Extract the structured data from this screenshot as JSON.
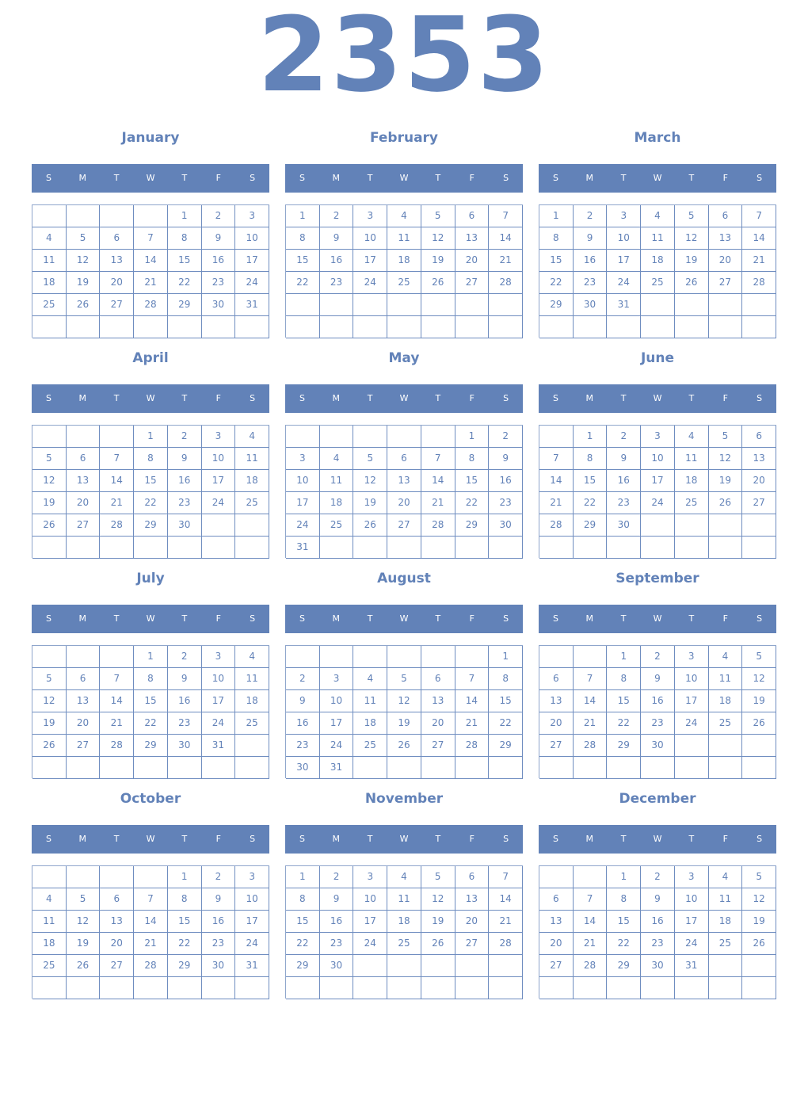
{
  "year": "2353",
  "weekday_labels": [
    "S",
    "M",
    "T",
    "W",
    "T",
    "F",
    "S"
  ],
  "colors": {
    "accent": "#6282b8",
    "header_text": "#ffffff"
  },
  "months": [
    {
      "name": "January",
      "weeks": [
        [
          null,
          null,
          null,
          null,
          1,
          2,
          3
        ],
        [
          4,
          5,
          6,
          7,
          8,
          9,
          10
        ],
        [
          11,
          12,
          13,
          14,
          15,
          16,
          17
        ],
        [
          18,
          19,
          20,
          21,
          22,
          23,
          24
        ],
        [
          25,
          26,
          27,
          28,
          29,
          30,
          31
        ],
        []
      ]
    },
    {
      "name": "February",
      "weeks": [
        [
          1,
          2,
          3,
          4,
          5,
          6,
          7
        ],
        [
          8,
          9,
          10,
          11,
          12,
          13,
          14
        ],
        [
          15,
          16,
          17,
          18,
          19,
          20,
          21
        ],
        [
          22,
          23,
          24,
          25,
          26,
          27,
          28
        ],
        [],
        []
      ]
    },
    {
      "name": "March",
      "weeks": [
        [
          1,
          2,
          3,
          4,
          5,
          6,
          7
        ],
        [
          8,
          9,
          10,
          11,
          12,
          13,
          14
        ],
        [
          15,
          16,
          17,
          18,
          19,
          20,
          21
        ],
        [
          22,
          23,
          24,
          25,
          26,
          27,
          28
        ],
        [
          29,
          30,
          31
        ],
        []
      ]
    },
    {
      "name": "April",
      "weeks": [
        [
          null,
          null,
          null,
          1,
          2,
          3,
          4
        ],
        [
          5,
          6,
          7,
          8,
          9,
          10,
          11
        ],
        [
          12,
          13,
          14,
          15,
          16,
          17,
          18
        ],
        [
          19,
          20,
          21,
          22,
          23,
          24,
          25
        ],
        [
          26,
          27,
          28,
          29,
          30
        ],
        []
      ]
    },
    {
      "name": "May",
      "weeks": [
        [
          null,
          null,
          null,
          null,
          null,
          1,
          2
        ],
        [
          3,
          4,
          5,
          6,
          7,
          8,
          9
        ],
        [
          10,
          11,
          12,
          13,
          14,
          15,
          16
        ],
        [
          17,
          18,
          19,
          20,
          21,
          22,
          23
        ],
        [
          24,
          25,
          26,
          27,
          28,
          29,
          30
        ],
        [
          31
        ]
      ]
    },
    {
      "name": "June",
      "weeks": [
        [
          null,
          1,
          2,
          3,
          4,
          5,
          6
        ],
        [
          7,
          8,
          9,
          10,
          11,
          12,
          13
        ],
        [
          14,
          15,
          16,
          17,
          18,
          19,
          20
        ],
        [
          21,
          22,
          23,
          24,
          25,
          26,
          27
        ],
        [
          28,
          29,
          30
        ],
        []
      ]
    },
    {
      "name": "July",
      "weeks": [
        [
          null,
          null,
          null,
          1,
          2,
          3,
          4
        ],
        [
          5,
          6,
          7,
          8,
          9,
          10,
          11
        ],
        [
          12,
          13,
          14,
          15,
          16,
          17,
          18
        ],
        [
          19,
          20,
          21,
          22,
          23,
          24,
          25
        ],
        [
          26,
          27,
          28,
          29,
          30,
          31
        ],
        []
      ]
    },
    {
      "name": "August",
      "weeks": [
        [
          null,
          null,
          null,
          null,
          null,
          null,
          1
        ],
        [
          2,
          3,
          4,
          5,
          6,
          7,
          8
        ],
        [
          9,
          10,
          11,
          12,
          13,
          14,
          15
        ],
        [
          16,
          17,
          18,
          19,
          20,
          21,
          22
        ],
        [
          23,
          24,
          25,
          26,
          27,
          28,
          29
        ],
        [
          30,
          31
        ]
      ]
    },
    {
      "name": "September",
      "weeks": [
        [
          null,
          null,
          1,
          2,
          3,
          4,
          5
        ],
        [
          6,
          7,
          8,
          9,
          10,
          11,
          12
        ],
        [
          13,
          14,
          15,
          16,
          17,
          18,
          19
        ],
        [
          20,
          21,
          22,
          23,
          24,
          25,
          26
        ],
        [
          27,
          28,
          29,
          30
        ],
        []
      ]
    },
    {
      "name": "October",
      "weeks": [
        [
          null,
          null,
          null,
          null,
          1,
          2,
          3
        ],
        [
          4,
          5,
          6,
          7,
          8,
          9,
          10
        ],
        [
          11,
          12,
          13,
          14,
          15,
          16,
          17
        ],
        [
          18,
          19,
          20,
          21,
          22,
          23,
          24
        ],
        [
          25,
          26,
          27,
          28,
          29,
          30,
          31
        ],
        []
      ]
    },
    {
      "name": "November",
      "weeks": [
        [
          1,
          2,
          3,
          4,
          5,
          6,
          7
        ],
        [
          8,
          9,
          10,
          11,
          12,
          13,
          14
        ],
        [
          15,
          16,
          17,
          18,
          19,
          20,
          21
        ],
        [
          22,
          23,
          24,
          25,
          26,
          27,
          28
        ],
        [
          29,
          30
        ],
        []
      ]
    },
    {
      "name": "December",
      "weeks": [
        [
          null,
          null,
          1,
          2,
          3,
          4,
          5
        ],
        [
          6,
          7,
          8,
          9,
          10,
          11,
          12
        ],
        [
          13,
          14,
          15,
          16,
          17,
          18,
          19
        ],
        [
          20,
          21,
          22,
          23,
          24,
          25,
          26
        ],
        [
          27,
          28,
          29,
          30,
          31
        ],
        []
      ]
    }
  ]
}
